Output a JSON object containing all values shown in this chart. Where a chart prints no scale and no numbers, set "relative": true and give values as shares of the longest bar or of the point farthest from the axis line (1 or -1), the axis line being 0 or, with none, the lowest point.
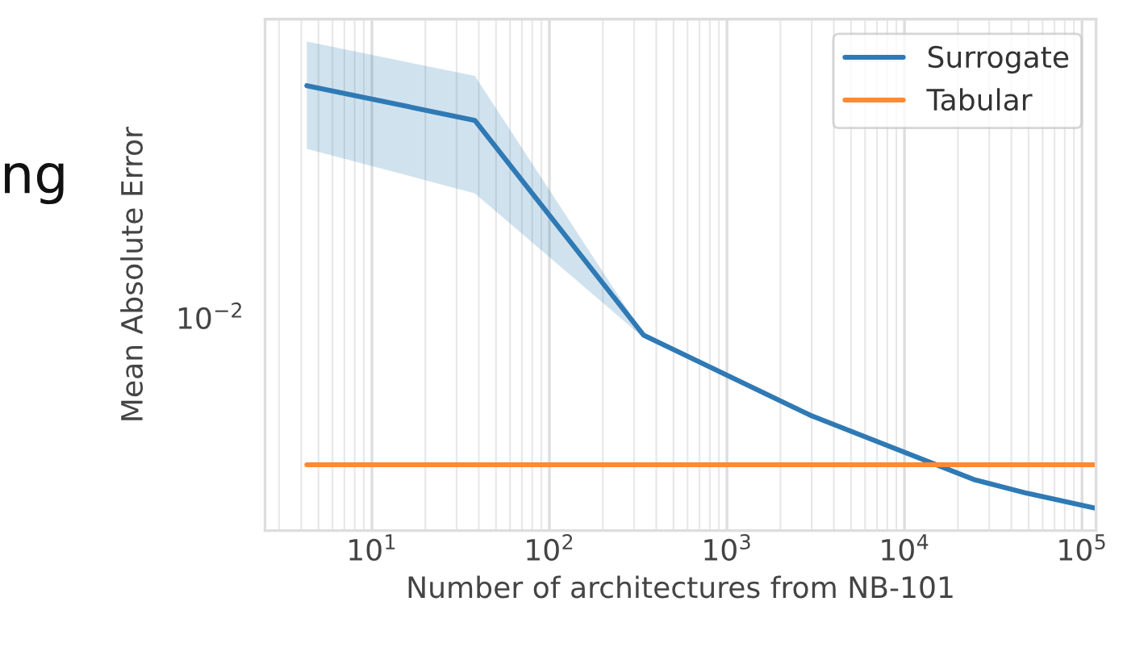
{
  "chart_data": {
    "type": "line",
    "xlabel": "Number of architectures from NB-101",
    "ylabel": "Mean Absolute Error",
    "annotations": [
      "ng",
      "10$^{−2}$"
    ],
    "relative": true,
    "series": [
      {
        "name": "Surrogate",
        "color": "#2f7ab5",
        "x": [
          4.3,
          38,
          340,
          2960,
          25000,
          49000,
          120000
        ],
        "values": [
          1,
          0.922,
          0.439,
          0.259,
          0.114,
          0.084,
          0.05
        ],
        "lower": [
          0.858,
          0.758,
          0.433,
          0.259,
          0.114,
          0.084,
          0.05
        ],
        "upper": [
          1.099,
          1.022,
          0.441,
          0.259,
          0.114,
          0.084,
          0.05
        ]
      },
      {
        "name": "Tabular",
        "color": "#ff8a33",
        "x": [
          4.3,
          120000
        ],
        "values": [
          0.148,
          0.148
        ]
      }
    ],
    "log": "x",
    "xlim": [
      2.5,
      120000
    ],
    "xticks": [
      {
        "value": 10,
        "label": "10$^{1}$"
      },
      {
        "value": 100,
        "label": "10$^{2}$"
      },
      {
        "value": 1000,
        "label": "10$^{3}$"
      },
      {
        "value": 10000,
        "label": "10$^{4}$"
      },
      {
        "value": 100000,
        "label": "10$^{5}$"
      }
    ],
    "grid": "x",
    "legend": "top right",
    "line_style": "solid",
    "marker": "none"
  }
}
